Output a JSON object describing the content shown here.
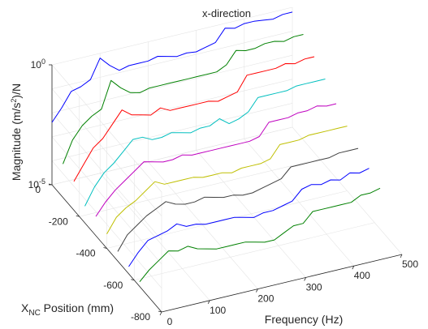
{
  "chart_data": {
    "type": "line",
    "subtype": "3d-waterfall",
    "title": "x-direction",
    "xlabel": "Frequency (Hz)",
    "ylabel": {
      "main": "X",
      "sub": "NC",
      "rest": " Position (mm)"
    },
    "zlabel": {
      "pre": "Magnitude (m/s",
      "sup": "2",
      "post": ")/N"
    },
    "xlim": [
      0,
      500
    ],
    "ylim": [
      -800,
      0
    ],
    "zlim_log10": [
      -5,
      0
    ],
    "z_scale": "log",
    "grid": true,
    "x_ticks": [
      0,
      100,
      200,
      300,
      400,
      500
    ],
    "y_ticks": [
      0,
      -200,
      -400,
      -600,
      -800
    ],
    "z_ticks": [
      {
        "base": "10",
        "exp": "0",
        "log": 0
      },
      {
        "base": "10",
        "exp": "-5",
        "log": -5
      }
    ],
    "frequency_hz": [
      0,
      20,
      40,
      60,
      80,
      100,
      120,
      140,
      160,
      180,
      200,
      220,
      240,
      260,
      280,
      300,
      320,
      340,
      360,
      380,
      400,
      420,
      440,
      460,
      480,
      500
    ],
    "series": [
      {
        "position_mm": 0,
        "color": "#0000ff",
        "log10_magnitude": [
          -2.4,
          -1.9,
          -1.3,
          -1.2,
          -1.0,
          -0.2,
          -0.6,
          -0.9,
          -0.8,
          -0.8,
          -0.8,
          -0.7,
          -0.8,
          -0.9,
          -0.85,
          -0.9,
          -0.8,
          -0.7,
          -0.2,
          -0.3,
          -0.2,
          -0.2,
          -0.25,
          -0.3,
          -0.2,
          -0.2
        ]
      },
      {
        "position_mm": -80,
        "color": "#008000",
        "log10_magnitude": [
          -3.6,
          -2.7,
          -2.2,
          -1.9,
          -1.7,
          -0.6,
          -1.0,
          -1.3,
          -1.4,
          -1.3,
          -1.3,
          -1.3,
          -1.3,
          -1.3,
          -1.3,
          -1.3,
          -1.3,
          -1.1,
          -0.6,
          -0.7,
          -0.7,
          -0.6,
          -0.6,
          -0.7,
          -0.6,
          -0.6
        ]
      },
      {
        "position_mm": -160,
        "color": "#ff0000",
        "log10_magnitude": [
          -3.8,
          -3.2,
          -2.6,
          -2.3,
          -1.8,
          -1.3,
          -1.6,
          -1.7,
          -1.8,
          -1.6,
          -1.8,
          -1.8,
          -1.8,
          -1.8,
          -1.8,
          -1.9,
          -1.8,
          -1.7,
          -1.1,
          -1.1,
          -1.1,
          -1.1,
          -1.0,
          -1.1,
          -1.0,
          -1.0
        ]
      },
      {
        "position_mm": -240,
        "color": "#00bfbf",
        "log10_magnitude": [
          -4.3,
          -3.6,
          -3.1,
          -2.8,
          -2.4,
          -2.0,
          -2.0,
          -2.2,
          -2.2,
          -2.1,
          -2.2,
          -2.3,
          -2.2,
          -2.2,
          -2.0,
          -2.3,
          -2.2,
          -2.0,
          -1.5,
          -1.5,
          -1.5,
          -1.5,
          -1.4,
          -1.4,
          -1.4,
          -1.4
        ]
      },
      {
        "position_mm": -320,
        "color": "#bf00bf",
        "log10_magnitude": [
          -4.2,
          -3.7,
          -3.3,
          -3.0,
          -2.7,
          -2.4,
          -2.5,
          -2.6,
          -2.6,
          -2.5,
          -2.6,
          -2.6,
          -2.6,
          -2.6,
          -2.6,
          -2.6,
          -2.6,
          -2.5,
          -2.0,
          -2.0,
          -2.0,
          -1.9,
          -1.9,
          -1.8,
          -1.9,
          -1.9
        ]
      },
      {
        "position_mm": -400,
        "color": "#bfbf00",
        "log10_magnitude": [
          -4.4,
          -3.8,
          -3.5,
          -3.3,
          -3.0,
          -2.7,
          -2.9,
          -2.9,
          -2.9,
          -2.9,
          -3.0,
          -3.0,
          -3.0,
          -3.1,
          -3.0,
          -3.0,
          -3.0,
          -2.9,
          -2.4,
          -2.4,
          -2.4,
          -2.3,
          -2.3,
          -2.3,
          -2.3,
          -2.3
        ]
      },
      {
        "position_mm": -480,
        "color": "#404040",
        "log10_magnitude": [
          -4.6,
          -4.0,
          -3.7,
          -3.4,
          -3.2,
          -3.0,
          -3.2,
          -3.3,
          -3.3,
          -3.2,
          -3.3,
          -3.4,
          -3.4,
          -3.5,
          -3.5,
          -3.4,
          -3.3,
          -3.2,
          -2.8,
          -2.8,
          -2.8,
          -2.8,
          -2.8,
          -2.7,
          -2.7,
          -2.7
        ]
      },
      {
        "position_mm": -560,
        "color": "#0000ff",
        "log10_magnitude": [
          -4.7,
          -4.2,
          -3.8,
          -3.7,
          -3.6,
          -3.4,
          -3.6,
          -3.6,
          -3.7,
          -3.7,
          -3.7,
          -3.7,
          -3.8,
          -3.9,
          -3.8,
          -3.8,
          -3.7,
          -3.6,
          -3.2,
          -3.1,
          -3.2,
          -3.1,
          -3.2,
          -3.0,
          -3.1,
          -3.0
        ]
      },
      {
        "position_mm": -640,
        "color": "#008000",
        "log10_magnitude": [
          -4.8,
          -4.4,
          -4.1,
          -3.8,
          -3.9,
          -3.8,
          -4.0,
          -4.1,
          -4.2,
          -4.2,
          -4.2,
          -4.2,
          -4.3,
          -4.4,
          -4.4,
          -4.2,
          -4.0,
          -4.0,
          -3.6,
          -3.6,
          -3.6,
          -3.6,
          -3.6,
          -3.4,
          -3.4,
          -3.3
        ]
      }
    ]
  }
}
